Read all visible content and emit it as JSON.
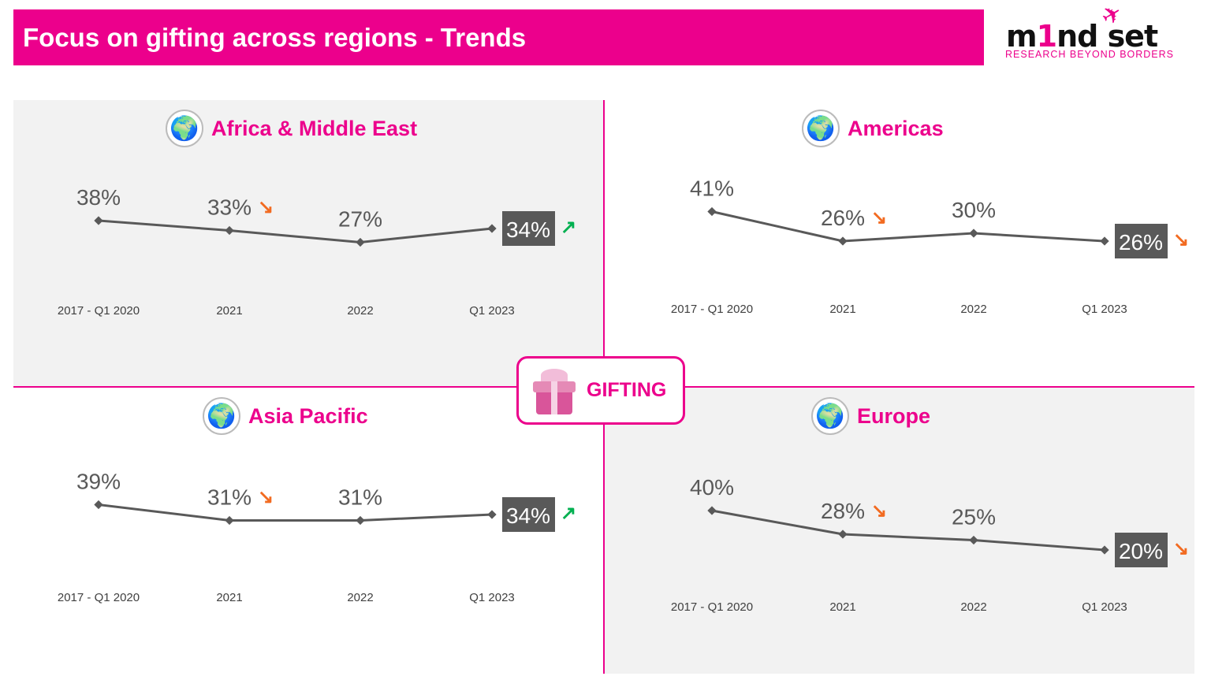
{
  "header": {
    "title": "Focus on gifting across regions - Trends"
  },
  "logo": {
    "word_a": "m",
    "word_one": "1",
    "word_b": "nd",
    "word_c": "set",
    "tagline": "RESEARCH BEYOND BORDERS"
  },
  "center_badge": {
    "label": "GIFTING",
    "icon": "gift-icon"
  },
  "colors": {
    "brand": "#ec008c",
    "line": "#595959",
    "down": "#f26b21",
    "up": "#00b050",
    "panel_grey": "#f2f2f2"
  },
  "chart_data": [
    {
      "type": "line",
      "title": "Africa & Middle East",
      "icon": "globe-africa-icon",
      "categories": [
        "2017 - Q1 2020",
        "2021",
        "2022",
        "Q1 2023"
      ],
      "values": [
        38,
        33,
        27,
        34
      ],
      "labels": [
        "38%",
        "33%",
        "27%",
        "34%"
      ],
      "trends": [
        null,
        "down",
        null,
        "up"
      ],
      "ylabel": "",
      "xlabel": ""
    },
    {
      "type": "line",
      "title": "Americas",
      "icon": "globe-americas-icon",
      "categories": [
        "2017 - Q1 2020",
        "2021",
        "2022",
        "Q1 2023"
      ],
      "values": [
        41,
        26,
        30,
        26
      ],
      "labels": [
        "41%",
        "26%",
        "30%",
        "26%"
      ],
      "trends": [
        null,
        "down",
        null,
        "down"
      ],
      "ylabel": "",
      "xlabel": ""
    },
    {
      "type": "line",
      "title": "Asia Pacific",
      "icon": "globe-asia-icon",
      "categories": [
        "2017 - Q1 2020",
        "2021",
        "2022",
        "Q1 2023"
      ],
      "values": [
        39,
        31,
        31,
        34
      ],
      "labels": [
        "39%",
        "31%",
        "31%",
        "34%"
      ],
      "trends": [
        null,
        "down",
        null,
        "up"
      ],
      "ylabel": "",
      "xlabel": ""
    },
    {
      "type": "line",
      "title": "Europe",
      "icon": "globe-europe-icon",
      "categories": [
        "2017 - Q1 2020",
        "2021",
        "2022",
        "Q1 2023"
      ],
      "values": [
        40,
        28,
        25,
        20
      ],
      "labels": [
        "40%",
        "28%",
        "25%",
        "20%"
      ],
      "trends": [
        null,
        "down",
        null,
        "down"
      ],
      "ylabel": "",
      "xlabel": ""
    }
  ]
}
